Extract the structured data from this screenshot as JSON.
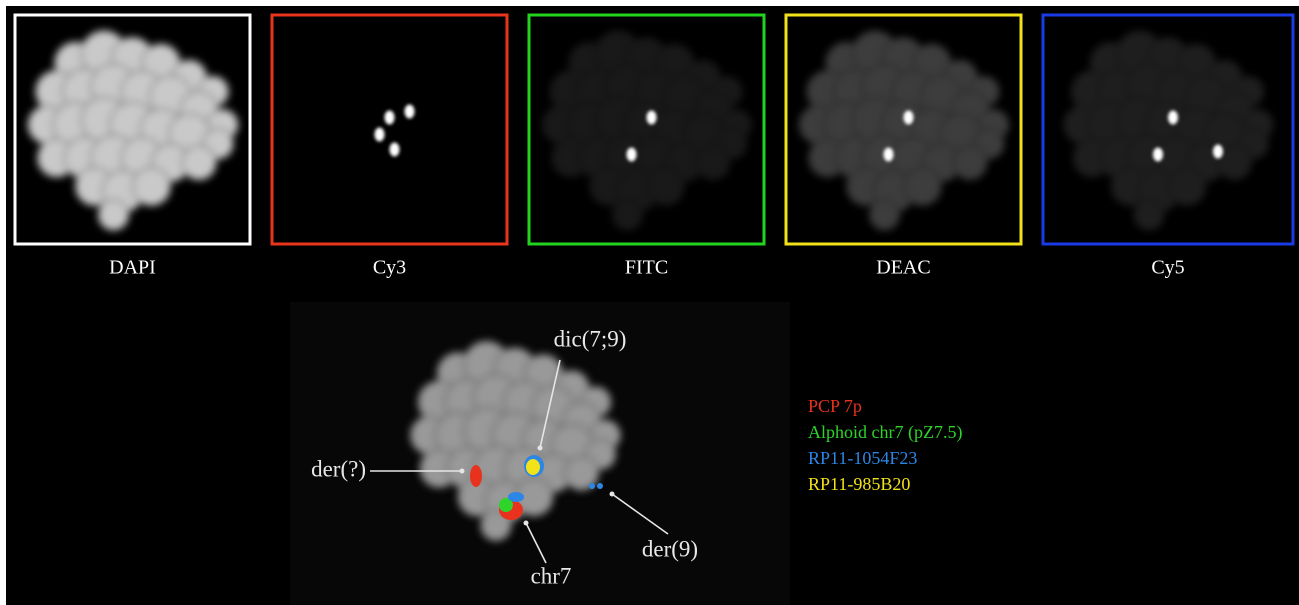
{
  "panels": [
    {
      "label": "DAPI",
      "border_color": "#ffffff"
    },
    {
      "label": "Cy3",
      "border_color": "#e8351c"
    },
    {
      "label": "FITC",
      "border_color": "#22d41e"
    },
    {
      "label": "DEAC",
      "border_color": "#f2e21a"
    },
    {
      "label": "Cy5",
      "border_color": "#1a3ae6"
    }
  ],
  "composite": {
    "annotations": [
      "dic(7;9)",
      "der(?)",
      "der(9)",
      "chr7"
    ]
  },
  "legend": [
    {
      "label": "PCP 7p",
      "color": "#e8321e"
    },
    {
      "label": "Alphoid chr7 (pZ7.5)",
      "color": "#2ed42a"
    },
    {
      "label": "RP11-1054F23",
      "color": "#2b86e6"
    },
    {
      "label": "RP11-985B20",
      "color": "#f2e21a"
    }
  ]
}
